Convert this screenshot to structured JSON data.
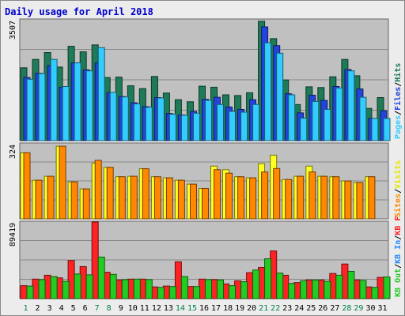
{
  "chart_data": {
    "type": "bar",
    "title": "Daily usage for April 2018",
    "days": [
      "1",
      "2",
      "3",
      "4",
      "5",
      "6",
      "7",
      "8",
      "9",
      "10",
      "11",
      "12",
      "13",
      "14",
      "15",
      "16",
      "17",
      "18",
      "19",
      "20",
      "21",
      "22",
      "23",
      "24",
      "25",
      "26",
      "27",
      "28",
      "29",
      "30",
      "31"
    ],
    "weekend_days": [
      "1",
      "7",
      "8",
      "14",
      "15",
      "21",
      "22",
      "28",
      "29"
    ],
    "colors": {
      "hits": "#1e7a57",
      "files": "#2244dd",
      "pages": "#33ccff",
      "visits": "#ffff22",
      "sites": "#ff8800",
      "kb_f": "#ff2222",
      "kb_in": "#2288ff",
      "kb_out": "#22cc22",
      "weekday_label": "#000000",
      "weekend_label": "#00804a"
    },
    "panels": [
      {
        "name": "hits-files-pages",
        "ymax": 3507,
        "ymax_label": "3507",
        "legend": [
          {
            "text": "Hits",
            "color": "#1e7a57"
          },
          {
            "text": "/",
            "color": "#000000"
          },
          {
            "text": "Files",
            "color": "#2244dd"
          },
          {
            "text": "/",
            "color": "#000000"
          },
          {
            "text": "Pages",
            "color": "#33ccff"
          }
        ],
        "series": [
          {
            "key": "hits",
            "values": [
              2100,
              2340,
              2540,
              2120,
              2720,
              2560,
              2760,
              1820,
              1830,
              1580,
              1500,
              1850,
              1370,
              1180,
              1120,
              1570,
              1540,
              1320,
              1300,
              1380,
              3440,
              2940,
              1750,
              1040,
              1550,
              1530,
              1840,
              2340,
              1870,
              930,
              1240
            ]
          },
          {
            "key": "files",
            "values": [
              1820,
              1940,
              2160,
              1540,
              2240,
              2040,
              2240,
              1380,
              1270,
              1090,
              980,
              1240,
              780,
              740,
              840,
              1190,
              1250,
              970,
              900,
              1180,
              3280,
              2740,
              1350,
              800,
              1310,
              1160,
              1560,
              2050,
              1490,
              640,
              860
            ]
          },
          {
            "key": "pages",
            "values": [
              1770,
              1930,
              2340,
              1560,
              2240,
              2010,
              2680,
              1390,
              1260,
              1060,
              960,
              1230,
              760,
              730,
              790,
              1160,
              1040,
              840,
              820,
              1040,
              2820,
              2520,
              1320,
              650,
              1130,
              900,
              1520,
              2010,
              1250,
              640,
              640
            ]
          }
        ]
      },
      {
        "name": "visits-sites",
        "ymax": 324,
        "ymax_label": "324",
        "legend": [
          {
            "text": "Visits",
            "color": "#e6e600"
          },
          {
            "text": "/",
            "color": "#000000"
          },
          {
            "text": "Sites",
            "color": "#ff8800"
          }
        ],
        "series": [
          {
            "key": "visits",
            "values": [
              282,
              165,
              182,
              310,
              158,
              128,
              238,
              220,
              180,
              182,
              214,
              180,
              175,
              165,
              148,
              130,
              225,
              210,
              180,
              175,
              236,
              272,
              168,
              182,
              225,
              182,
              180,
              162,
              155,
              180,
              0
            ]
          },
          {
            "key": "sites",
            "values": [
              282,
              165,
              182,
              310,
              158,
              128,
              250,
              220,
              180,
              182,
              214,
              180,
              175,
              165,
              148,
              130,
              210,
              195,
              180,
              175,
              200,
              215,
              168,
              182,
              200,
              182,
              180,
              162,
              155,
              180,
              0
            ]
          }
        ]
      },
      {
        "name": "kb",
        "ymax": 89419,
        "ymax_label": "89419",
        "legend": [
          {
            "text": "KB F",
            "color": "#ff2222"
          },
          {
            "text": "/",
            "color": "#000000"
          },
          {
            "text": "KB In",
            "color": "#2288ff"
          },
          {
            "text": "/",
            "color": "#000000"
          },
          {
            "text": "KB Out",
            "color": "#22cc22"
          }
        ],
        "series": [
          {
            "key": "kb_f",
            "values": [
              15000,
              22500,
              27000,
              24000,
              44000,
              37000,
              89419,
              30500,
              21500,
              22500,
              22500,
              13500,
              14500,
              42500,
              14000,
              22500,
              22000,
              17000,
              20500,
              30000,
              36000,
              55000,
              27000,
              18500,
              21500,
              21500,
              29000,
              40000,
              21500,
              13500,
              24500
            ]
          },
          {
            "key": "kb_in",
            "values": [
              0,
              0,
              0,
              0,
              0,
              0,
              0,
              0,
              0,
              0,
              0,
              0,
              0,
              0,
              0,
              0,
              0,
              0,
              0,
              0,
              0,
              0,
              0,
              0,
              0,
              0,
              0,
              0,
              0,
              0,
              0
            ]
          },
          {
            "key": "kb_out",
            "values": [
              14500,
              22000,
              25500,
              20000,
              28500,
              27500,
              48000,
              28000,
              22000,
              22500,
              22000,
              13000,
              14000,
              25500,
              14000,
              22000,
              21500,
              15000,
              19500,
              33000,
              46000,
              29500,
              17500,
              20500,
              21500,
              20000,
              27000,
              31500,
              21000,
              13000,
              25000
            ]
          }
        ]
      }
    ]
  }
}
